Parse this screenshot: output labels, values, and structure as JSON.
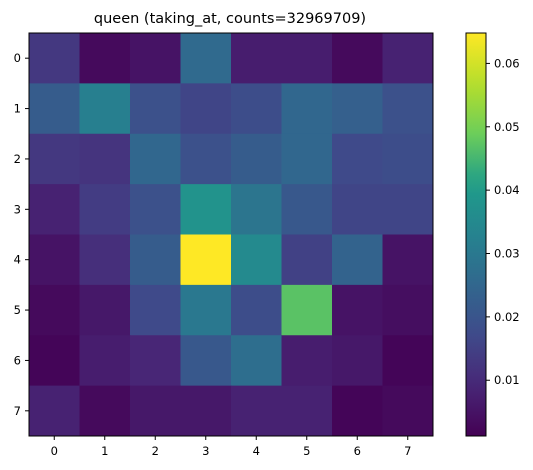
{
  "chart_data": {
    "type": "heatmap",
    "title": "queen (taking_at, counts=32969709)",
    "xlabel": "",
    "ylabel": "",
    "x_categories": [
      "0",
      "1",
      "2",
      "3",
      "4",
      "5",
      "6",
      "7"
    ],
    "y_categories": [
      "0",
      "1",
      "2",
      "3",
      "4",
      "5",
      "6",
      "7"
    ],
    "values": [
      [
        0.013,
        0.003,
        0.005,
        0.026,
        0.007,
        0.007,
        0.003,
        0.008
      ],
      [
        0.022,
        0.032,
        0.019,
        0.016,
        0.018,
        0.025,
        0.023,
        0.019
      ],
      [
        0.013,
        0.012,
        0.025,
        0.019,
        0.022,
        0.025,
        0.017,
        0.018
      ],
      [
        0.008,
        0.014,
        0.019,
        0.038,
        0.029,
        0.021,
        0.016,
        0.016
      ],
      [
        0.005,
        0.011,
        0.022,
        0.065,
        0.035,
        0.015,
        0.024,
        0.005
      ],
      [
        0.003,
        0.006,
        0.017,
        0.03,
        0.018,
        0.047,
        0.005,
        0.004
      ],
      [
        0.002,
        0.007,
        0.009,
        0.021,
        0.027,
        0.007,
        0.006,
        0.002
      ],
      [
        0.008,
        0.003,
        0.006,
        0.006,
        0.008,
        0.008,
        0.002,
        0.003
      ]
    ],
    "color_range": [
      0.0012,
      0.0648
    ],
    "colormap": "viridis",
    "colorbar": {
      "ticks": [
        0.01,
        0.02,
        0.03,
        0.04,
        0.05,
        0.06
      ],
      "tick_labels": [
        "0.01",
        "0.02",
        "0.03",
        "0.04",
        "0.05",
        "0.06"
      ]
    },
    "grid": false
  }
}
